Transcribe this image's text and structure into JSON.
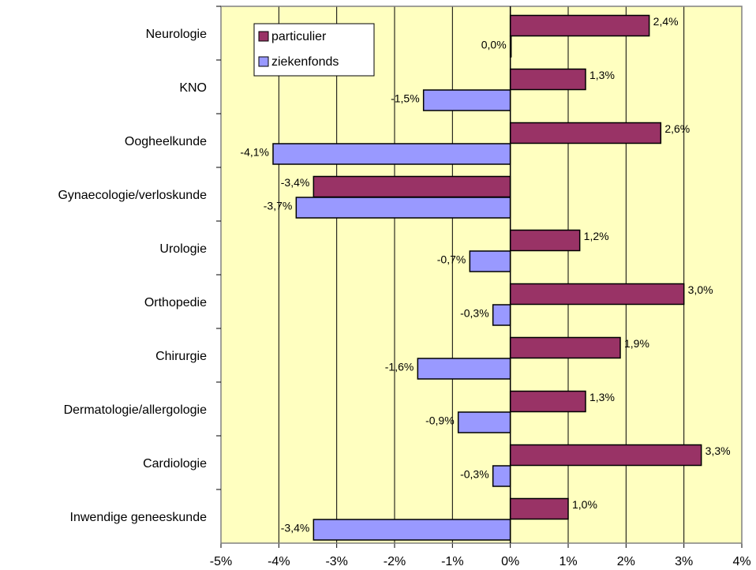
{
  "chart_data": {
    "type": "bar",
    "orientation": "horizontal",
    "categories": [
      "Neurologie",
      "KNO",
      "Oogheelkunde",
      "Gynaecologie/verloskunde",
      "Urologie",
      "Orthopedie",
      "Chirurgie",
      "Dermatologie/allergologie",
      "Cardiologie",
      "Inwendige geneeskunde"
    ],
    "series": [
      {
        "name": "particulier",
        "color": "#993366",
        "values": [
          2.4,
          1.3,
          2.6,
          -3.4,
          1.2,
          3.0,
          1.9,
          1.3,
          3.3,
          1.0
        ],
        "value_labels": [
          "2,4%",
          "1,3%",
          "2,6%",
          "-3,4%",
          "1,2%",
          "3,0%",
          "1,9%",
          "1,3%",
          "3,3%",
          "1,0%"
        ]
      },
      {
        "name": "ziekenfonds",
        "color": "#9999ff",
        "values": [
          0.0,
          -1.5,
          -4.1,
          -3.7,
          -0.7,
          -0.3,
          -1.6,
          -0.9,
          -0.3,
          -3.4
        ],
        "value_labels": [
          "0,0%",
          "-1,5%",
          "-4,1%",
          "-3,7%",
          "-0,7%",
          "-0,3%",
          "-1,6%",
          "-0,9%",
          "-0,3%",
          "-3,4%"
        ]
      }
    ],
    "xlim": [
      -5,
      4
    ],
    "xticks": [
      {
        "value": -5,
        "label": "-5%"
      },
      {
        "value": -4,
        "label": "-4%"
      },
      {
        "value": -3,
        "label": "-3%"
      },
      {
        "value": -2,
        "label": "-2%"
      },
      {
        "value": -1,
        "label": "-1%"
      },
      {
        "value": 0,
        "label": "0%"
      },
      {
        "value": 1,
        "label": "1%"
      },
      {
        "value": 2,
        "label": "2%"
      },
      {
        "value": 3,
        "label": "3%"
      },
      {
        "value": 4,
        "label": "4%"
      }
    ],
    "grid": true,
    "legend": "top-left",
    "plot_background": "#ffffc0"
  }
}
